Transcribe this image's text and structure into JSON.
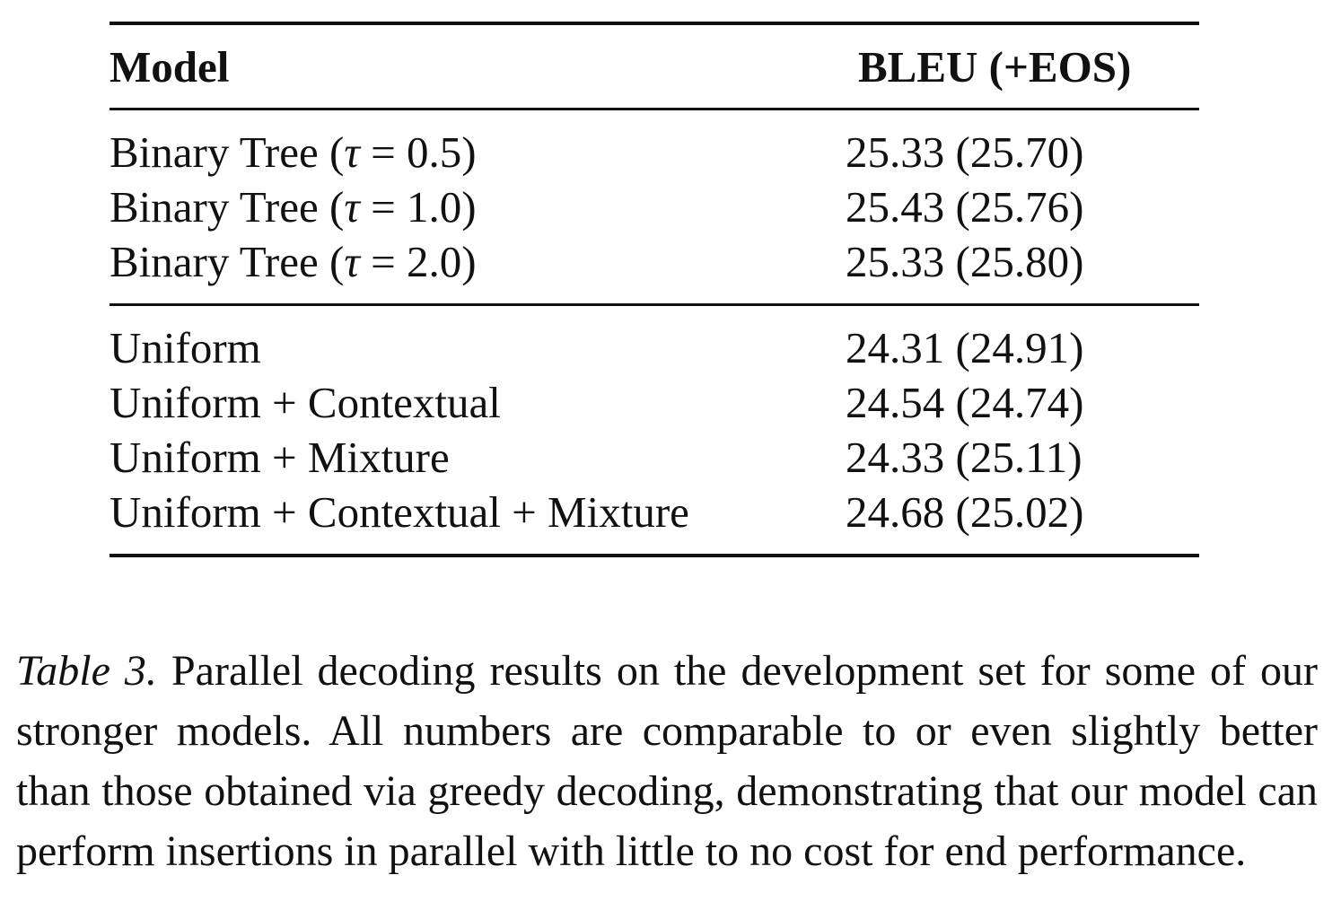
{
  "table": {
    "headers": {
      "model": "Model",
      "bleu": "BLEU (+EOS)"
    },
    "groups": [
      {
        "rows": [
          {
            "model_prefix": "Binary Tree (",
            "tau_symbol": "τ",
            "model_suffix": " = 0.5)",
            "bleu": "25.33 (25.70)"
          },
          {
            "model_prefix": "Binary Tree (",
            "tau_symbol": "τ",
            "model_suffix": " = 1.0)",
            "bleu": "25.43 (25.76)"
          },
          {
            "model_prefix": "Binary Tree (",
            "tau_symbol": "τ",
            "model_suffix": " = 2.0)",
            "bleu": "25.33 (25.80)"
          }
        ]
      },
      {
        "rows": [
          {
            "model": "Uniform",
            "bleu": "24.31 (24.91)"
          },
          {
            "model": "Uniform + Contextual",
            "bleu": "24.54 (24.74)"
          },
          {
            "model": "Uniform + Mixture",
            "bleu": "24.33 (25.11)"
          },
          {
            "model": "Uniform + Contextual + Mixture",
            "bleu": "24.68 (25.02)"
          }
        ]
      }
    ]
  },
  "caption": {
    "label": "Table 3.",
    "text": "Parallel decoding results on the development set for some of our stronger models. All numbers are comparable to or even slightly better than those obtained via greedy decoding, demonstrating that our model can perform insertions in parallel with little to no cost for end performance."
  }
}
